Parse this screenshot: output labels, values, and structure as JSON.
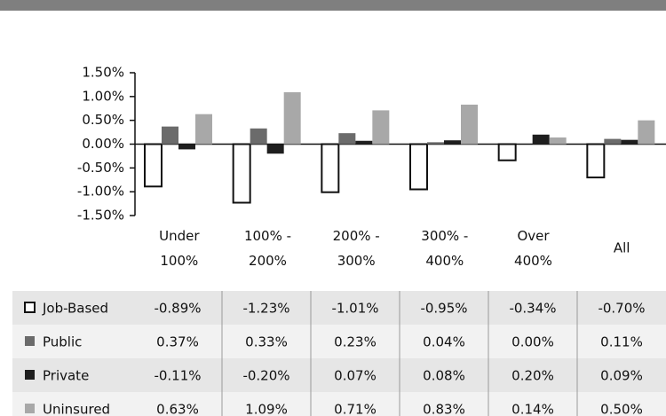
{
  "chart_data": {
    "type": "bar",
    "categories": [
      "Under 100%",
      "100% - 200%",
      "200% - 300%",
      "300% - 400%",
      "Over 400%",
      "All"
    ],
    "series": [
      {
        "name": "Job-Based",
        "color": "#ffffff",
        "values": [
          -0.89,
          -1.23,
          -1.01,
          -0.95,
          -0.34,
          -0.7
        ],
        "value_labels": [
          "-0.89%",
          "-1.23%",
          "-1.01%",
          "-0.95%",
          "-0.34%",
          "-0.70%"
        ]
      },
      {
        "name": "Public",
        "color": "#6b6b6b",
        "values": [
          0.37,
          0.33,
          0.23,
          0.04,
          0.0,
          0.11
        ],
        "value_labels": [
          "0.37%",
          "0.33%",
          "0.23%",
          "0.04%",
          "0.00%",
          "0.11%"
        ]
      },
      {
        "name": "Private",
        "color": "#1e1e1e",
        "values": [
          -0.11,
          -0.2,
          0.07,
          0.08,
          0.2,
          0.09
        ],
        "value_labels": [
          "-0.11%",
          "-0.20%",
          "0.07%",
          "0.08%",
          "0.20%",
          "0.09%"
        ]
      },
      {
        "name": "Uninsured",
        "color": "#a8a8a8",
        "values": [
          0.63,
          1.09,
          0.71,
          0.83,
          0.14,
          0.5
        ],
        "value_labels": [
          "0.63%",
          "1.09%",
          "0.71%",
          "0.83%",
          "0.14%",
          "0.50%"
        ]
      }
    ],
    "ylim": [
      -1.5,
      1.5
    ],
    "yticks": [
      {
        "value": 1.5,
        "label": "1.50%"
      },
      {
        "value": 1.0,
        "label": "1.00%"
      },
      {
        "value": 0.5,
        "label": "0.50%"
      },
      {
        "value": 0,
        "label": "0.00%"
      },
      {
        "value": -0.5,
        "label": "-0.50%"
      },
      {
        "value": -1.0,
        "label": "-1.00%"
      },
      {
        "value": -1.5,
        "label": "-1.50%"
      }
    ]
  }
}
